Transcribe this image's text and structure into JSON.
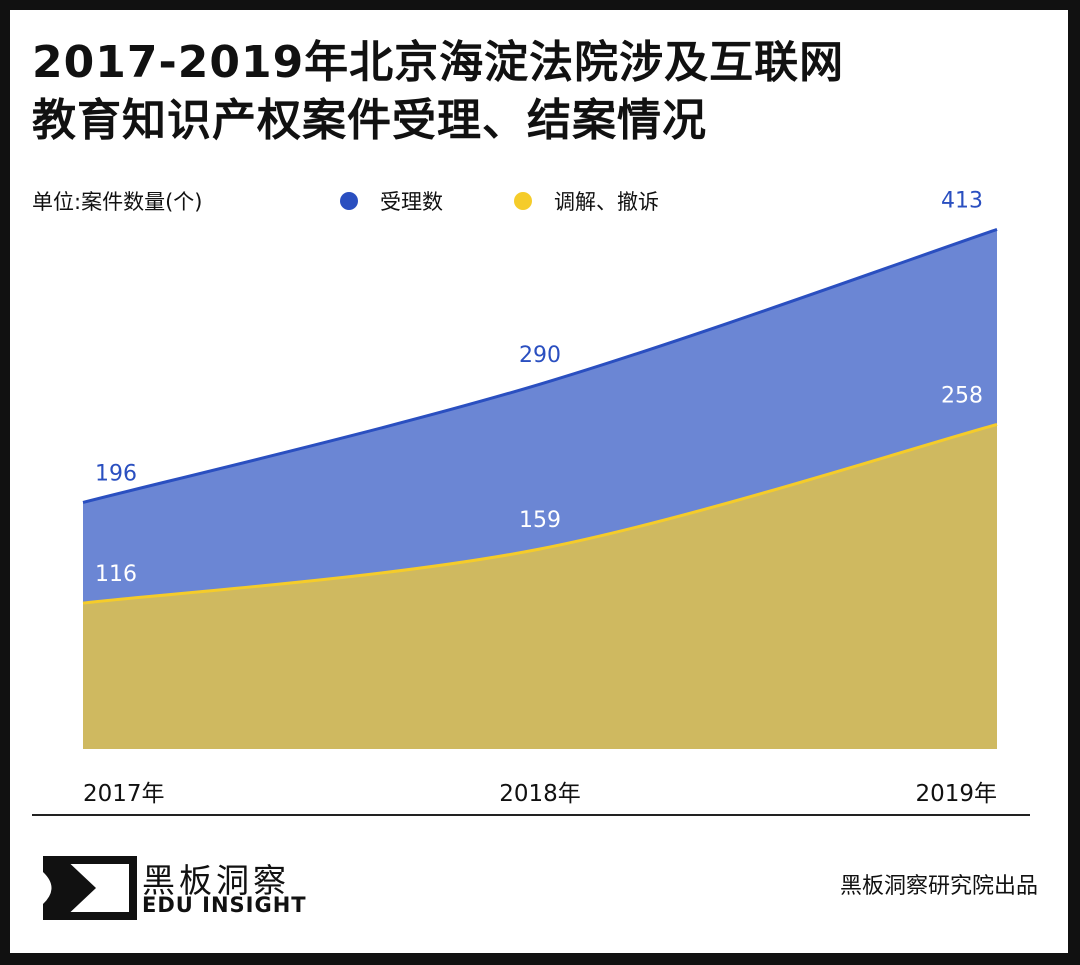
{
  "title_line1": "2017-2019年北京海淀法院涉及互联网",
  "title_line2": "教育知识产权案件受理、结案情况",
  "logo": {
    "cn": "黑板洞察",
    "en": "EDU INSIGHT"
  },
  "credit": "黑板洞察研究院出品",
  "chart_data": {
    "type": "area",
    "ylabel": "单位:案件数量(个)",
    "categories": [
      "2017年",
      "2018年",
      "2019年"
    ],
    "ylim": [
      0,
      413
    ],
    "grid": false,
    "legend_placement": "top",
    "series": [
      {
        "name": "受理数",
        "values": [
          196,
          290,
          413
        ],
        "color": "#2a4fc0",
        "fill": "#6b86d4",
        "label_color": "#2a4fc0"
      },
      {
        "name": "调解、撤诉",
        "values": [
          116,
          159,
          258
        ],
        "color": "#f5cc2a",
        "fill": "#cfb960",
        "label_color": "#ffffff"
      }
    ]
  }
}
